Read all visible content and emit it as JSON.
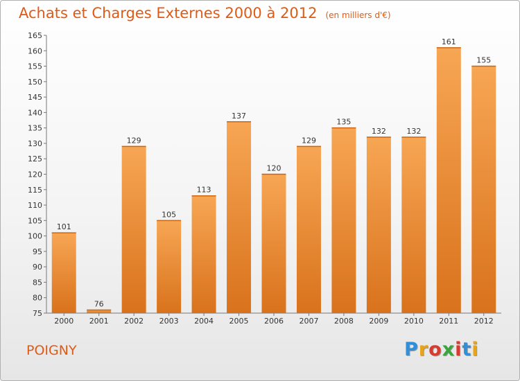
{
  "header": {
    "title": "Achats et Charges Externes 2000 à 2012",
    "unit": "(en milliers d'€)"
  },
  "footer": {
    "commune": "POIGNY",
    "logo": [
      "P",
      "r",
      "o",
      "x",
      "i",
      "t",
      "i"
    ]
  },
  "colors": {
    "bar_top": "#f7a654",
    "bar_bottom": "#d9721c",
    "accent": "#e05a14"
  },
  "chart_data": {
    "type": "bar",
    "title": "Achats et Charges Externes 2000 à 2012",
    "subtitle": "(en milliers d'€)",
    "categories": [
      "2000",
      "2001",
      "2002",
      "2003",
      "2004",
      "2005",
      "2006",
      "2007",
      "2008",
      "2009",
      "2010",
      "2011",
      "2012"
    ],
    "values": [
      101,
      76,
      129,
      105,
      113,
      137,
      120,
      129,
      135,
      132,
      132,
      161,
      155
    ],
    "ylim": [
      75,
      165
    ],
    "yticks": [
      75,
      80,
      85,
      90,
      95,
      100,
      105,
      110,
      115,
      120,
      125,
      130,
      135,
      140,
      145,
      150,
      155,
      160,
      165
    ],
    "grid": false,
    "data_labels": true
  }
}
